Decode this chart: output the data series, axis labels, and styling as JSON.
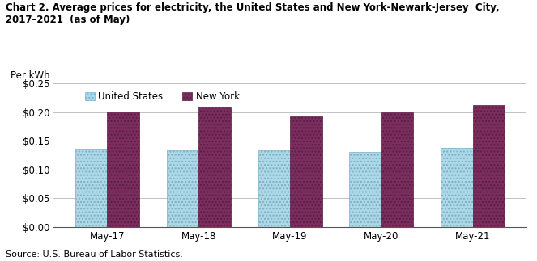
{
  "title_line1": "Chart 2. Average prices for electricity, the United States and New York-Newark-Jersey  City,",
  "title_line2": "2017–2021  (as of May)",
  "ylabel_top": "Per kWh",
  "categories": [
    "May-17",
    "May-18",
    "May-19",
    "May-20",
    "May-21"
  ],
  "us_values": [
    0.135,
    0.134,
    0.134,
    0.131,
    0.138
  ],
  "ny_values": [
    0.201,
    0.208,
    0.193,
    0.2,
    0.213
  ],
  "us_color": "#ADD8E6",
  "ny_color": "#7B2D5E",
  "us_edge": "#7AB0CA",
  "ny_edge": "#5A1F45",
  "us_label": "United States",
  "ny_label": "New York",
  "ylim": [
    0,
    0.25
  ],
  "yticks": [
    0.0,
    0.05,
    0.1,
    0.15,
    0.2,
    0.25
  ],
  "source": "Source: U.S. Bureau of Labor Statistics.",
  "bar_width": 0.35,
  "grid_color": "#AAAAAA",
  "background_color": "#FFFFFF",
  "title_fontsize": 8.5,
  "axis_fontsize": 8.5,
  "legend_fontsize": 8.5,
  "source_fontsize": 8
}
